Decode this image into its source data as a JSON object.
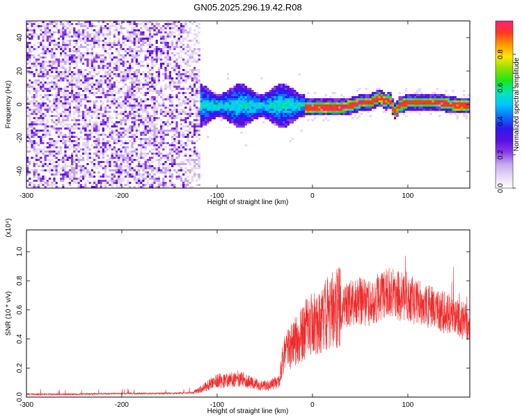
{
  "figure": {
    "title": "GN05.2025.296.19.42.R08"
  },
  "colors": {
    "snr_line": "#ee2b2b",
    "frame": "#000000",
    "colormap": [
      "#ffffff",
      "#e6d8f6",
      "#c7a8f0",
      "#8a3ce8",
      "#5a10e0",
      "#2b1af0",
      "#1070ff",
      "#00c8ff",
      "#00e6b4",
      "#18e81a",
      "#8ee000",
      "#ffe600",
      "#ff9a00",
      "#ff3a20",
      "#ff1e78"
    ]
  },
  "chart_data": [
    {
      "type": "heatmap",
      "xlabel": "Height of straight line (km)",
      "ylabel": "Frequency (Hz)",
      "xlim": [
        -300,
        165
      ],
      "ylim": [
        -50,
        50
      ],
      "xticks": [
        -300,
        -200,
        -100,
        0,
        100
      ],
      "yticks": [
        -40,
        -20,
        0,
        20,
        40
      ],
      "colorbar": {
        "label": "Normalized spectral amplitude",
        "range": [
          0,
          1
        ],
        "ticks": [
          "0.0",
          "0.2",
          "0.4",
          "0.6",
          "0.8"
        ],
        "tick_values": [
          0.0,
          0.2,
          0.4,
          0.6,
          0.8
        ]
      },
      "regions": [
        {
          "x_range": [
            -300,
            -120
          ],
          "freq_range": [
            -50,
            50
          ],
          "amplitude": 0.05
        },
        {
          "x_range": [
            -135,
            -10
          ],
          "freq_range": [
            -10,
            10
          ],
          "amplitude": 0.3
        },
        {
          "x_range": [
            -10,
            30
          ],
          "freq_range": [
            -2,
            2
          ],
          "amplitude": 0.9
        },
        {
          "x_range": [
            30,
            165
          ],
          "freq_range": [
            -3,
            6
          ],
          "amplitude": 0.9
        }
      ],
      "ridge": {
        "x": [
          -10,
          0,
          20,
          30,
          40,
          50,
          60,
          70,
          75,
          80,
          85,
          90,
          100,
          110,
          120,
          130,
          140,
          150,
          160,
          165
        ],
        "freq": [
          -1,
          -1,
          -1,
          -1,
          0,
          2,
          2,
          5,
          2,
          4,
          -4,
          0,
          2,
          2,
          2,
          2,
          1,
          0,
          0,
          0
        ]
      }
    },
    {
      "type": "line",
      "xlabel": "Height of straight line (km)",
      "ylabel": "SNR (10 * v/v)",
      "y_multiplier": "(x10⁴)",
      "xlim": [
        -300,
        165
      ],
      "ylim": [
        0,
        1.15
      ],
      "xticks": [
        -300,
        -200,
        -100,
        0,
        100
      ],
      "yticks": [
        "0.0",
        "0.2",
        "0.4",
        "0.6",
        "0.8",
        "1.0"
      ],
      "ytick_values": [
        0.0,
        0.2,
        0.4,
        0.6,
        0.8,
        1.0
      ],
      "series": [
        {
          "x": [
            -300,
            -250,
            -200,
            -150,
            -125,
            -115,
            -105,
            -100,
            -95,
            -85,
            -75,
            -65,
            -55,
            -45,
            -40,
            -35,
            -30,
            -25,
            -20,
            -15,
            -10,
            0,
            10,
            20,
            30,
            40,
            50,
            60,
            70,
            80,
            90,
            100,
            110,
            120,
            130,
            140,
            150,
            160,
            165
          ],
          "y": [
            0.02,
            0.02,
            0.025,
            0.025,
            0.03,
            0.06,
            0.1,
            0.12,
            0.11,
            0.12,
            0.13,
            0.1,
            0.08,
            0.08,
            0.1,
            0.1,
            0.3,
            0.33,
            0.37,
            0.4,
            0.45,
            0.5,
            0.55,
            0.6,
            0.62,
            0.65,
            0.66,
            0.64,
            0.68,
            0.72,
            0.7,
            0.68,
            0.65,
            0.62,
            0.6,
            0.58,
            0.55,
            0.52,
            0.5
          ]
        }
      ]
    }
  ]
}
